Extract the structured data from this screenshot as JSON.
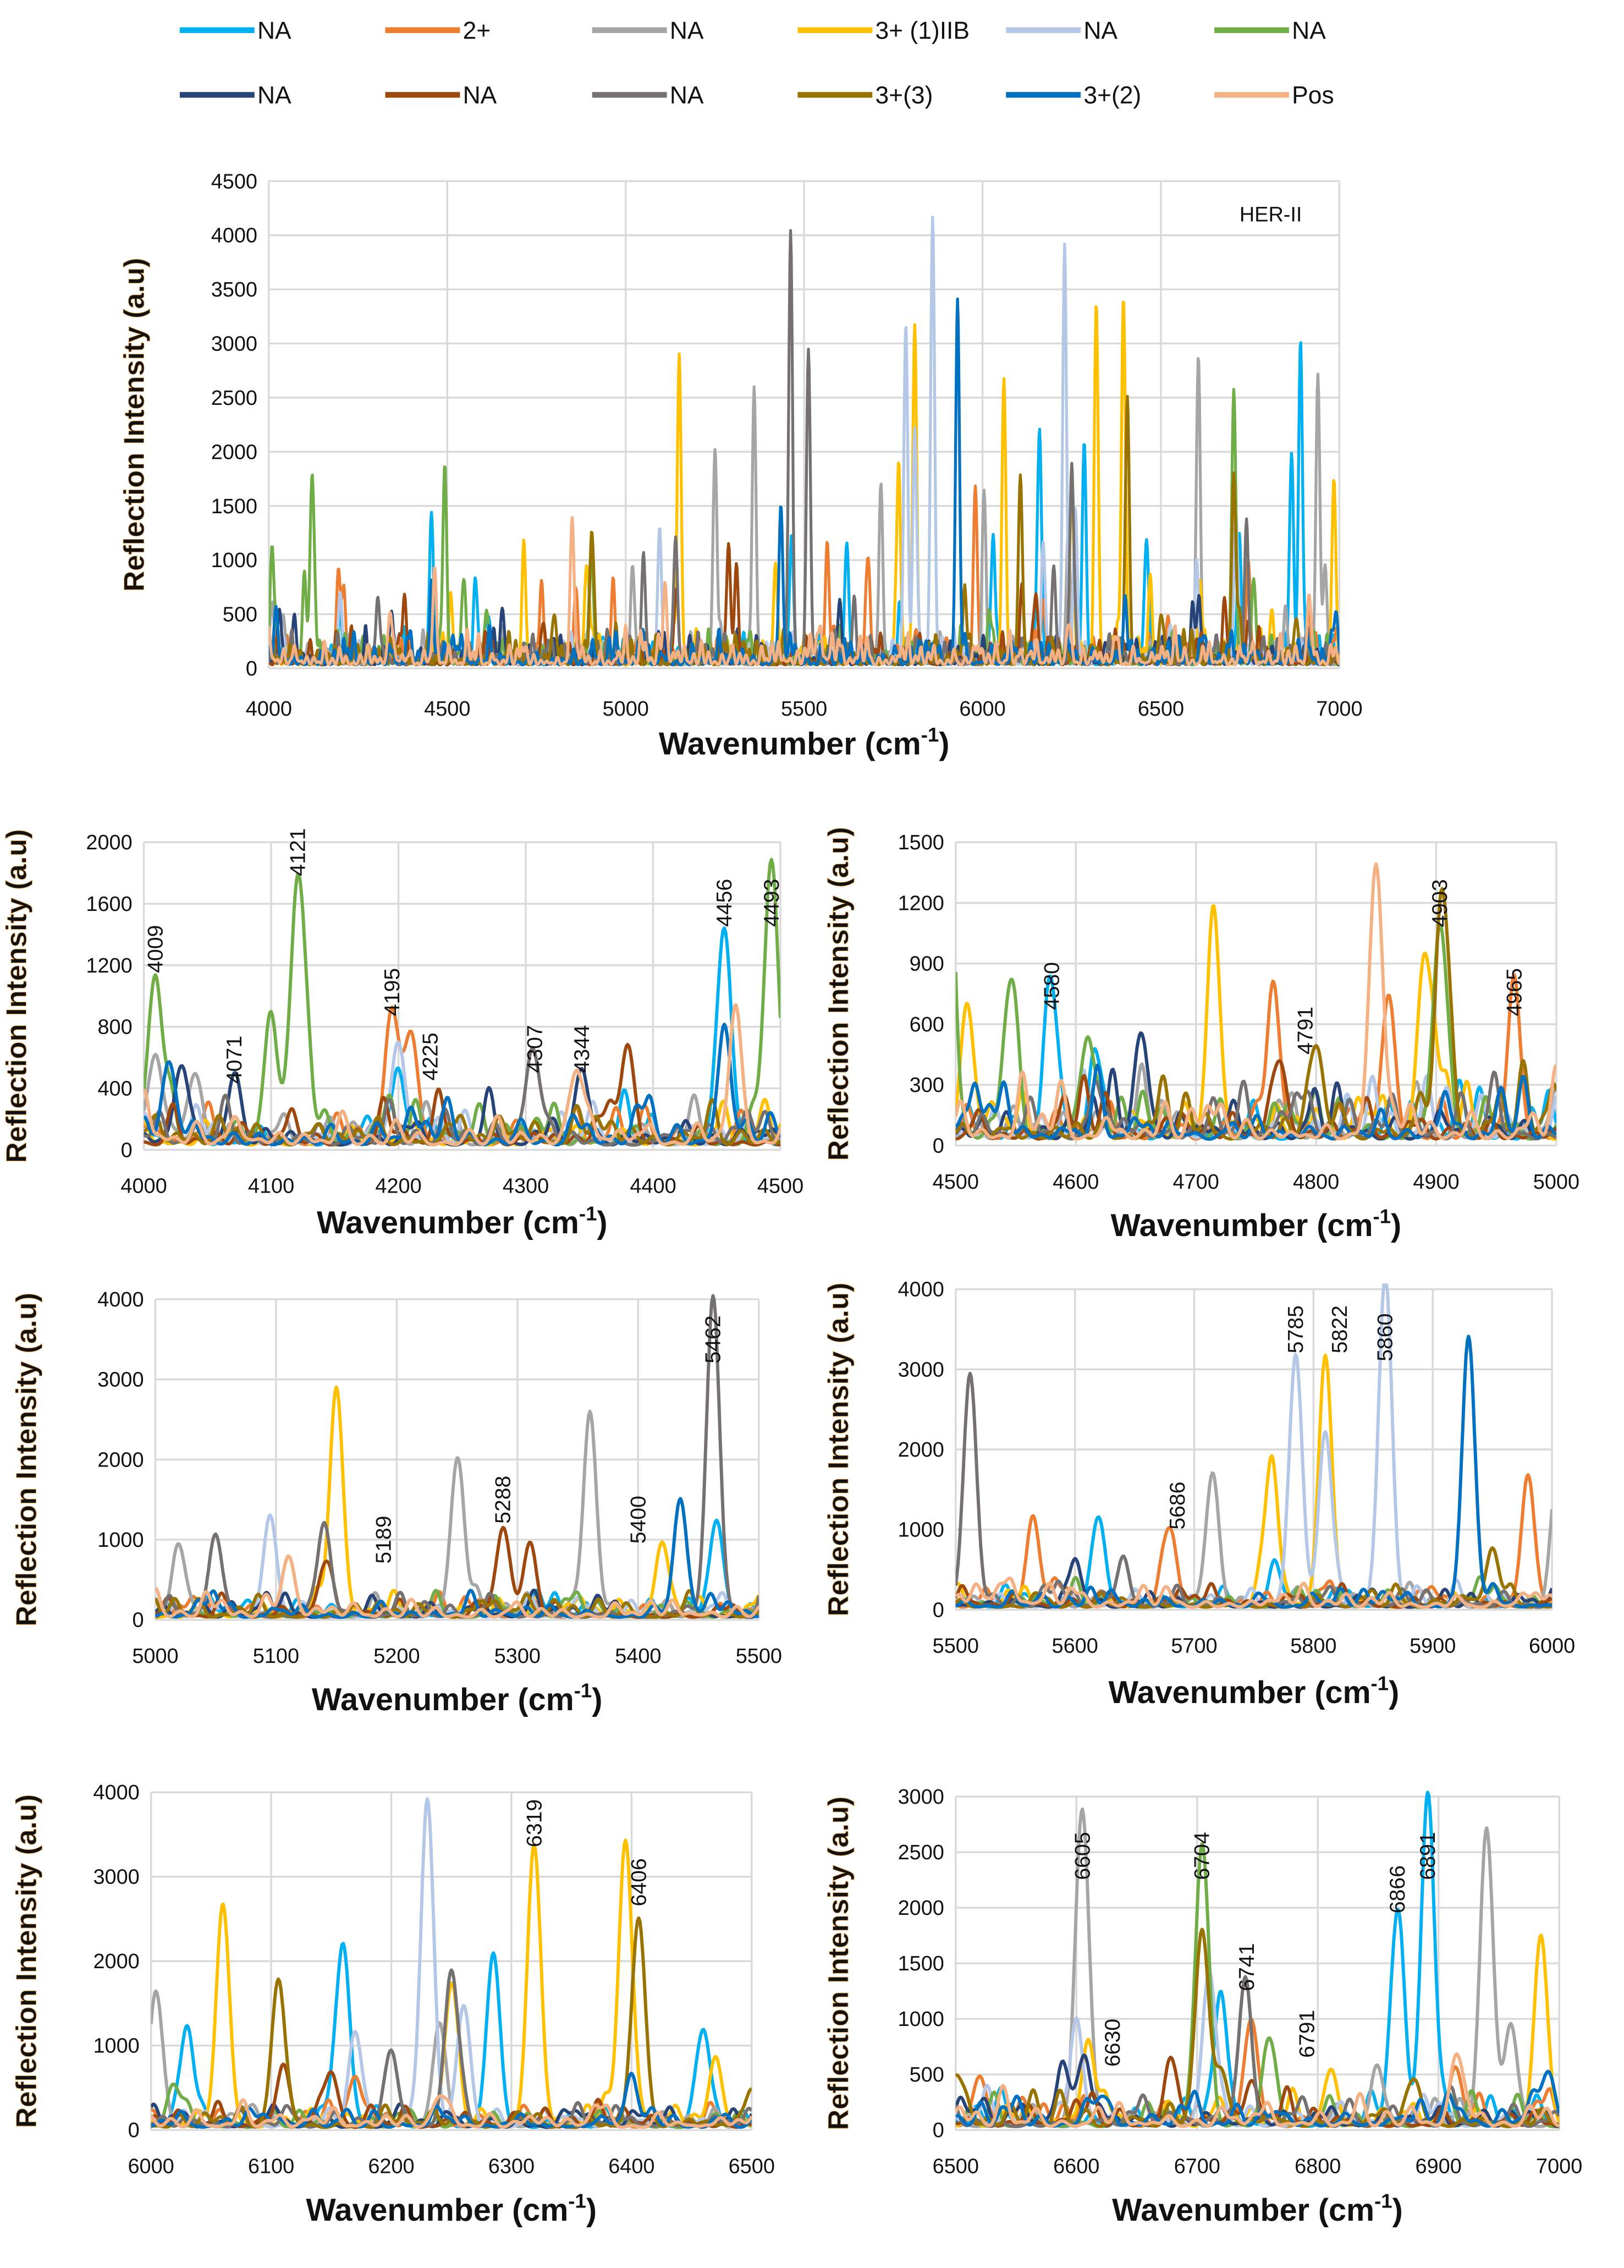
{
  "chart_data": {
    "type": "line",
    "legend_placement": "top",
    "legend": [
      {
        "label": "NA",
        "color": "#00B0F0"
      },
      {
        "label": "2+",
        "color": "#ED7D31"
      },
      {
        "label": "NA",
        "color": "#A5A5A5"
      },
      {
        "label": "3+ (1)IIB",
        "color": "#FFC000"
      },
      {
        "label": "NA",
        "color": "#B4C7E7"
      },
      {
        "label": "NA",
        "color": "#70AD47"
      },
      {
        "label": "NA",
        "color": "#264478"
      },
      {
        "label": "NA",
        "color": "#9E480E"
      },
      {
        "label": "NA",
        "color": "#767171"
      },
      {
        "label": "3+(3)",
        "color": "#997300"
      },
      {
        "label": "3+(2)",
        "color": "#0070C0"
      },
      {
        "label": "Pos",
        "color": "#F4B183"
      }
    ],
    "series_peaks": [
      [
        [
          4200,
          380
        ],
        [
          4456,
          1400
        ],
        [
          4580,
          640
        ],
        [
          4620,
          250
        ],
        [
          5465,
          1200
        ],
        [
          5620,
          1050
        ],
        [
          5770,
          300
        ],
        [
          6030,
          1100
        ],
        [
          6160,
          2150
        ],
        [
          6285,
          2050
        ],
        [
          6460,
          1130
        ],
        [
          6720,
          900
        ],
        [
          6866,
          1800
        ],
        [
          6891,
          2850
        ]
      ],
      [
        [
          4195,
          830
        ],
        [
          4210,
          700
        ],
        [
          4765,
          640
        ],
        [
          4860,
          680
        ],
        [
          4965,
          620
        ],
        [
          5565,
          1050
        ],
        [
          5680,
          900
        ],
        [
          5980,
          1600
        ],
        [
          6170,
          600
        ],
        [
          6745,
          950
        ],
        [
          6915,
          450
        ],
        [
          6520,
          450
        ]
      ],
      [
        [
          4009,
          550
        ],
        [
          4040,
          450
        ],
        [
          5020,
          800
        ],
        [
          5250,
          1900
        ],
        [
          5360,
          2400
        ],
        [
          5715,
          1550
        ],
        [
          6005,
          1400
        ],
        [
          6240,
          1200
        ],
        [
          6605,
          2800
        ],
        [
          6850,
          450
        ],
        [
          6940,
          2600
        ],
        [
          6960,
          900
        ]
      ],
      [
        [
          4510,
          600
        ],
        [
          4715,
          930
        ],
        [
          4890,
          880
        ],
        [
          5150,
          2850
        ],
        [
          5420,
          900
        ],
        [
          5765,
          1650
        ],
        [
          5810,
          3100
        ],
        [
          6060,
          2550
        ],
        [
          6250,
          1650
        ],
        [
          6319,
          3280
        ],
        [
          6395,
          3380
        ],
        [
          6470,
          800
        ],
        [
          6610,
          650
        ],
        [
          6810,
          450
        ],
        [
          6985,
          1680
        ]
      ],
      [
        [
          4200,
          650
        ],
        [
          5095,
          1250
        ],
        [
          5785,
          3100
        ],
        [
          5810,
          2100
        ],
        [
          5860,
          4050
        ],
        [
          6170,
          1100
        ],
        [
          6230,
          3620
        ],
        [
          6260,
          1400
        ],
        [
          6600,
          850
        ],
        [
          6710,
          1400
        ]
      ],
      [
        [
          4009,
          1100
        ],
        [
          4100,
          700
        ],
        [
          4121,
          1720
        ],
        [
          4493,
          1850
        ],
        [
          4545,
          680
        ],
        [
          4610,
          500
        ],
        [
          4903,
          1040
        ],
        [
          6704,
          2500
        ],
        [
          6760,
          700
        ],
        [
          6020,
          400
        ]
      ],
      [
        [
          4030,
          500
        ],
        [
          4071,
          400
        ],
        [
          4344,
          480
        ],
        [
          4655,
          490
        ],
        [
          5600,
          350
        ],
        [
          6605,
          480
        ],
        [
          6590,
          350
        ]
      ],
      [
        [
          4380,
          600
        ],
        [
          4770,
          370
        ],
        [
          5140,
          600
        ],
        [
          5288,
          1100
        ],
        [
          5310,
          850
        ],
        [
          6110,
          700
        ],
        [
          6150,
          650
        ],
        [
          6680,
          480
        ],
        [
          6745,
          400
        ]
      ],
      [
        [
          4307,
          480
        ],
        [
          5050,
          1000
        ],
        [
          5140,
          1150
        ],
        [
          5462,
          3760
        ],
        [
          5512,
          2870
        ],
        [
          5640,
          450
        ],
        [
          6250,
          1850
        ],
        [
          6740,
          1150
        ],
        [
          6200,
          900
        ]
      ],
      [
        [
          4800,
          430
        ],
        [
          4905,
          1050
        ],
        [
          5950,
          700
        ],
        [
          6106,
          1720
        ],
        [
          6406,
          2470
        ],
        [
          6500,
          450
        ],
        [
          6704,
          1750
        ],
        [
          6720,
          500
        ],
        [
          6880,
          400
        ]
      ],
      [
        [
          4020,
          520
        ],
        [
          4456,
          550
        ],
        [
          5435,
          1450
        ],
        [
          5930,
          3150
        ],
        [
          6400,
          450
        ],
        [
          6990,
          450
        ],
        [
          6620,
          250
        ]
      ],
      [
        [
          4340,
          480
        ],
        [
          4465,
          620
        ],
        [
          4850,
          1350
        ],
        [
          5110,
          700
        ],
        [
          6240,
          350
        ],
        [
          6915,
          600
        ]
      ]
    ],
    "ylabel": "Reflection Intensity (a.u)",
    "xlabel": "Wavenumber (cm-1)",
    "panels": [
      {
        "title": "HER-II",
        "xlim": [
          4000,
          7000
        ],
        "xstep": 500,
        "ylim": [
          0,
          4500
        ],
        "ystep": 500,
        "grid": true,
        "annotations": []
      },
      {
        "xlim": [
          4000,
          4500
        ],
        "xstep": 100,
        "ylim": [
          0,
          2000
        ],
        "ystep": 400,
        "grid": true,
        "annotations": [
          {
            "label": "4009",
            "x": 4009,
            "y": 1150
          },
          {
            "label": "4071",
            "x": 4071,
            "y": 430
          },
          {
            "label": "4121",
            "x": 4121,
            "y": 1780
          },
          {
            "label": "4195",
            "x": 4195,
            "y": 870
          },
          {
            "label": "4225",
            "x": 4225,
            "y": 450
          },
          {
            "label": "4307",
            "x": 4307,
            "y": 500
          },
          {
            "label": "4344",
            "x": 4344,
            "y": 500
          },
          {
            "label": "4456",
            "x": 4456,
            "y": 1450
          },
          {
            "label": "4493",
            "x": 4493,
            "y": 1450
          }
        ]
      },
      {
        "xlim": [
          4500,
          5000
        ],
        "xstep": 100,
        "ylim": [
          0,
          1500
        ],
        "ystep": 300,
        "grid": true,
        "annotations": [
          {
            "label": "4580",
            "x": 4580,
            "y": 670
          },
          {
            "label": "4791",
            "x": 4791,
            "y": 450
          },
          {
            "label": "4903",
            "x": 4903,
            "y": 1080
          },
          {
            "label": "4965",
            "x": 4965,
            "y": 640
          }
        ]
      },
      {
        "xlim": [
          5000,
          5500
        ],
        "xstep": 100,
        "ylim": [
          0,
          4000
        ],
        "ystep": 1000,
        "grid": true,
        "annotations": [
          {
            "label": "5189",
            "x": 5189,
            "y": 700
          },
          {
            "label": "5288",
            "x": 5288,
            "y": 1200
          },
          {
            "label": "5400",
            "x": 5400,
            "y": 950
          },
          {
            "label": "5462",
            "x": 5462,
            "y": 3200
          }
        ]
      },
      {
        "xlim": [
          5500,
          6000
        ],
        "xstep": 100,
        "ylim": [
          0,
          4000
        ],
        "ystep": 1000,
        "grid": true,
        "annotations": [
          {
            "label": "5686",
            "x": 5686,
            "y": 1000
          },
          {
            "label": "5785",
            "x": 5785,
            "y": 3200
          },
          {
            "label": "5822",
            "x": 5822,
            "y": 3200
          },
          {
            "label": "5860",
            "x": 5860,
            "y": 3100
          }
        ]
      },
      {
        "xlim": [
          6000,
          6500
        ],
        "xstep": 100,
        "ylim": [
          0,
          4000
        ],
        "ystep": 1000,
        "grid": true,
        "annotations": [
          {
            "label": "6319",
            "x": 6319,
            "y": 3350
          },
          {
            "label": "6406",
            "x": 6406,
            "y": 2650
          }
        ]
      },
      {
        "xlim": [
          6500,
          7000
        ],
        "xstep": 100,
        "ylim": [
          0,
          3000
        ],
        "ystep": 500,
        "grid": true,
        "annotations": [
          {
            "label": "6605",
            "x": 6605,
            "y": 2250
          },
          {
            "label": "6630",
            "x": 6630,
            "y": 570
          },
          {
            "label": "6704",
            "x": 6704,
            "y": 2250
          },
          {
            "label": "6741",
            "x": 6741,
            "y": 1250
          },
          {
            "label": "6791",
            "x": 6791,
            "y": 650
          },
          {
            "label": "6866",
            "x": 6866,
            "y": 1950
          },
          {
            "label": "6891",
            "x": 6891,
            "y": 2250
          }
        ]
      }
    ]
  }
}
